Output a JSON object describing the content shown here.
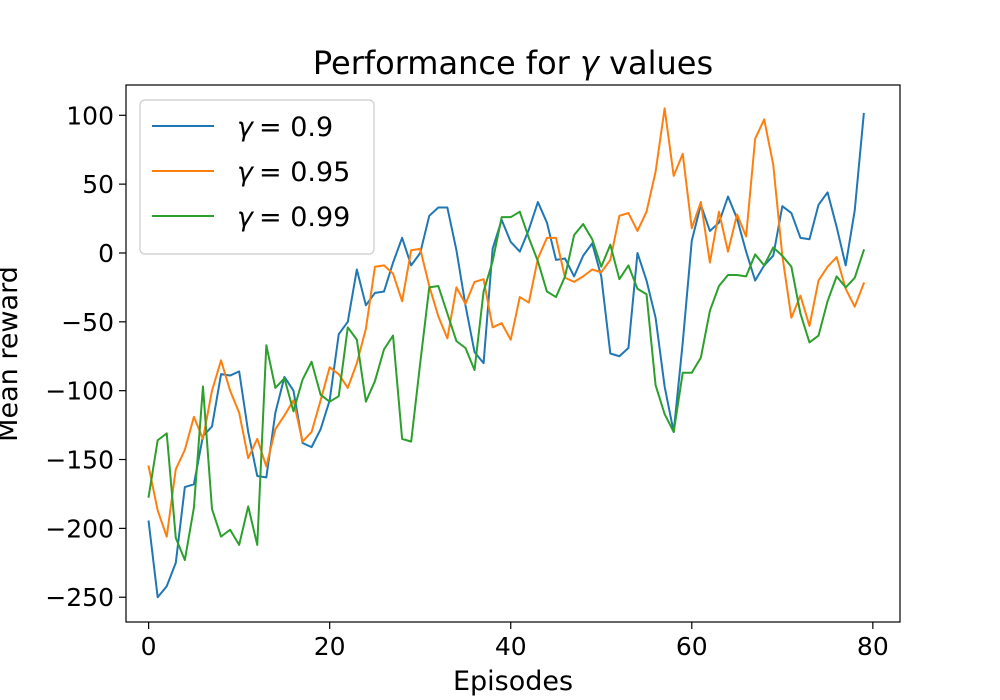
{
  "chart_data": {
    "type": "line",
    "title": "Performance for γ values",
    "title_parts": {
      "prefix": "Performance for ",
      "symbol": "γ",
      "suffix": " values"
    },
    "xlabel": "Episodes",
    "ylabel": "Mean reward",
    "xlim": [
      -2.5,
      83
    ],
    "ylim": [
      -268,
      122
    ],
    "xticks": [
      0,
      20,
      40,
      60,
      80
    ],
    "yticks": [
      100,
      50,
      0,
      -50,
      -100,
      -150,
      -200,
      -250
    ],
    "ytick_labels": [
      "100",
      "50",
      "0",
      "−50",
      "−100",
      "−150",
      "−200",
      "−250"
    ],
    "grid": false,
    "legend_position": "top-left",
    "series": [
      {
        "name": "γ = 0.9",
        "legend_symbol": "γ",
        "legend_value": "= 0.9",
        "color": "#1f77b4",
        "values": [
          -195,
          -250,
          -242,
          -225,
          -170,
          -168,
          -133,
          -126,
          -88,
          -89,
          -86,
          -130,
          -162,
          -163,
          -116,
          -90,
          -100,
          -138,
          -141,
          -128,
          -107,
          -59,
          -50,
          -12,
          -38,
          -29,
          -28,
          -7,
          11,
          -9,
          0,
          27,
          33,
          33,
          2,
          -38,
          -72,
          -80,
          3,
          24,
          8,
          1,
          17,
          37,
          22,
          -5,
          -4,
          -17,
          -2,
          7,
          -17,
          -73,
          -75,
          -69,
          0,
          -20,
          -47,
          -97,
          -130,
          -65,
          9,
          35,
          16,
          22,
          41,
          25,
          1,
          -20,
          -9,
          -2,
          34,
          29,
          11,
          10,
          35,
          44,
          19,
          -9,
          31,
          101
        ]
      },
      {
        "name": "γ = 0.95",
        "legend_symbol": "γ",
        "legend_value": "= 0.95",
        "color": "#ff7f0e",
        "values": [
          -155,
          -187,
          -206,
          -157,
          -143,
          -119,
          -135,
          -100,
          -78,
          -100,
          -116,
          -149,
          -135,
          -155,
          -128,
          -118,
          -107,
          -137,
          -130,
          -107,
          -83,
          -88,
          -98,
          -80,
          -55,
          -10,
          -9,
          -15,
          -35,
          2,
          3,
          -24,
          -46,
          -62,
          -25,
          -37,
          -21,
          -19,
          -54,
          -51,
          -63,
          -32,
          -36,
          -4,
          11,
          11,
          -18,
          -21,
          -17,
          -12,
          -14,
          -5,
          27,
          29,
          16,
          30,
          59,
          105,
          56,
          72,
          18,
          37,
          -7,
          30,
          1,
          28,
          12,
          83,
          97,
          64,
          -2,
          -47,
          -31,
          -53,
          -20,
          -10,
          -3,
          -26,
          -39,
          -22
        ]
      },
      {
        "name": "γ = 0.99",
        "legend_symbol": "γ",
        "legend_value": "= 0.99",
        "color": "#2ca02c",
        "values": [
          -177,
          -136,
          -131,
          -207,
          -223,
          -185,
          -97,
          -186,
          -206,
          -201,
          -212,
          -184,
          -212,
          -67,
          -98,
          -91,
          -115,
          -92,
          -79,
          -103,
          -108,
          -104,
          -54,
          -63,
          -108,
          -93,
          -70,
          -60,
          -135,
          -137,
          -80,
          -25,
          -24,
          -44,
          -64,
          -69,
          -85,
          -28,
          -6,
          26,
          26,
          30,
          11,
          -6,
          -28,
          -32,
          -17,
          13,
          21,
          10,
          -10,
          6,
          -19,
          -9,
          -26,
          -30,
          -96,
          -117,
          -130,
          -87,
          -87,
          -76,
          -42,
          -24,
          -16,
          -16,
          -17,
          -1,
          -9,
          4,
          -2,
          -10,
          -44,
          -65,
          -60,
          -35,
          -17,
          -25,
          -18,
          2
        ]
      }
    ]
  }
}
